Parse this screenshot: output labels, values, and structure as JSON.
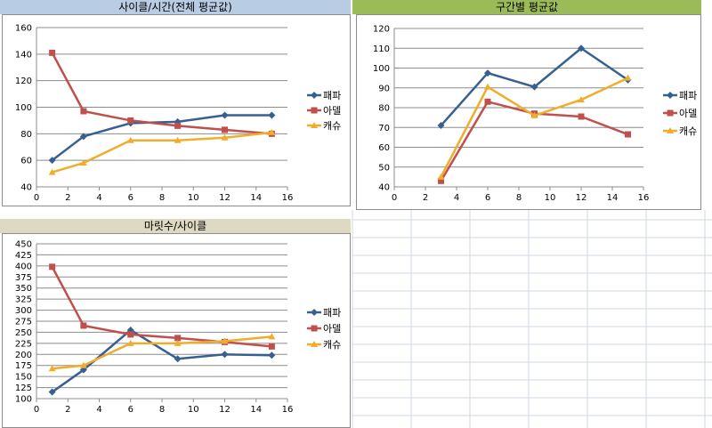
{
  "headers": {
    "chart1": "사이클/시간(전체 평균값)",
    "chart2": "구간별 평균값",
    "chart3": "마릿수/사이클"
  },
  "colors": {
    "header_blue": "#b8cce4",
    "header_green": "#9bbb59",
    "header_tan": "#ddd9c3",
    "series_blue": "#376092",
    "series_red": "#c0504d",
    "series_orange": "#f0ad2c"
  },
  "chart_data": [
    {
      "type": "line",
      "title": "사이클/시간(전체 평균값)",
      "xlim": [
        0,
        16
      ],
      "xticks": [
        0,
        2,
        4,
        6,
        8,
        10,
        12,
        14,
        16
      ],
      "ylim": [
        40,
        160
      ],
      "yticks": [
        40,
        60,
        80,
        100,
        120,
        140,
        160
      ],
      "grid": true,
      "legend": "right",
      "series": [
        {
          "name": "패파",
          "marker": "diamond",
          "color": "#376092",
          "x": [
            1,
            3,
            6,
            9,
            12,
            15
          ],
          "values": [
            60,
            78,
            88,
            89,
            94,
            94
          ]
        },
        {
          "name": "아델",
          "marker": "square",
          "color": "#c0504d",
          "x": [
            1,
            3,
            6,
            9,
            12,
            15
          ],
          "values": [
            141,
            97,
            90,
            86,
            83,
            80
          ]
        },
        {
          "name": "캐슈",
          "marker": "triangle",
          "color": "#f0ad2c",
          "x": [
            1,
            3,
            6,
            9,
            12,
            15
          ],
          "values": [
            51,
            58,
            75,
            75,
            77,
            81
          ]
        }
      ]
    },
    {
      "type": "line",
      "title": "구간별 평균값",
      "xlim": [
        0,
        16
      ],
      "xticks": [
        0,
        2,
        4,
        6,
        8,
        10,
        12,
        14,
        16
      ],
      "ylim": [
        40,
        120
      ],
      "yticks": [
        40,
        50,
        60,
        70,
        80,
        90,
        100,
        110,
        120
      ],
      "grid": true,
      "legend": "right",
      "series": [
        {
          "name": "패파",
          "marker": "diamond",
          "color": "#376092",
          "x": [
            3,
            6,
            9,
            12,
            15
          ],
          "values": [
            71,
            97.5,
            90.5,
            110,
            94
          ]
        },
        {
          "name": "아델",
          "marker": "square",
          "color": "#c0504d",
          "x": [
            3,
            6,
            9,
            12,
            15
          ],
          "values": [
            43,
            83,
            77,
            75.5,
            66.5
          ]
        },
        {
          "name": "캐슈",
          "marker": "triangle",
          "color": "#f0ad2c",
          "x": [
            3,
            6,
            9,
            12,
            15
          ],
          "values": [
            45,
            90.5,
            76,
            84,
            95
          ]
        }
      ]
    },
    {
      "type": "line",
      "title": "마릿수/사이클",
      "xlim": [
        0,
        16
      ],
      "xticks": [
        0,
        2,
        4,
        6,
        8,
        10,
        12,
        14,
        16
      ],
      "ylim": [
        100,
        450
      ],
      "yticks": [
        100,
        125,
        150,
        175,
        200,
        225,
        250,
        275,
        300,
        325,
        350,
        375,
        400,
        425,
        450
      ],
      "grid": true,
      "legend": "right",
      "series": [
        {
          "name": "패파",
          "marker": "diamond",
          "color": "#376092",
          "x": [
            1,
            3,
            6,
            9,
            12,
            15
          ],
          "values": [
            115,
            165,
            255,
            190,
            200,
            198
          ]
        },
        {
          "name": "아델",
          "marker": "square",
          "color": "#c0504d",
          "x": [
            1,
            3,
            6,
            9,
            12,
            15
          ],
          "values": [
            398,
            265,
            245,
            237,
            228,
            218
          ]
        },
        {
          "name": "캐슈",
          "marker": "triangle",
          "color": "#f0ad2c",
          "x": [
            1,
            3,
            6,
            9,
            12,
            15
          ],
          "values": [
            168,
            175,
            225,
            225,
            230,
            240
          ]
        }
      ]
    }
  ]
}
